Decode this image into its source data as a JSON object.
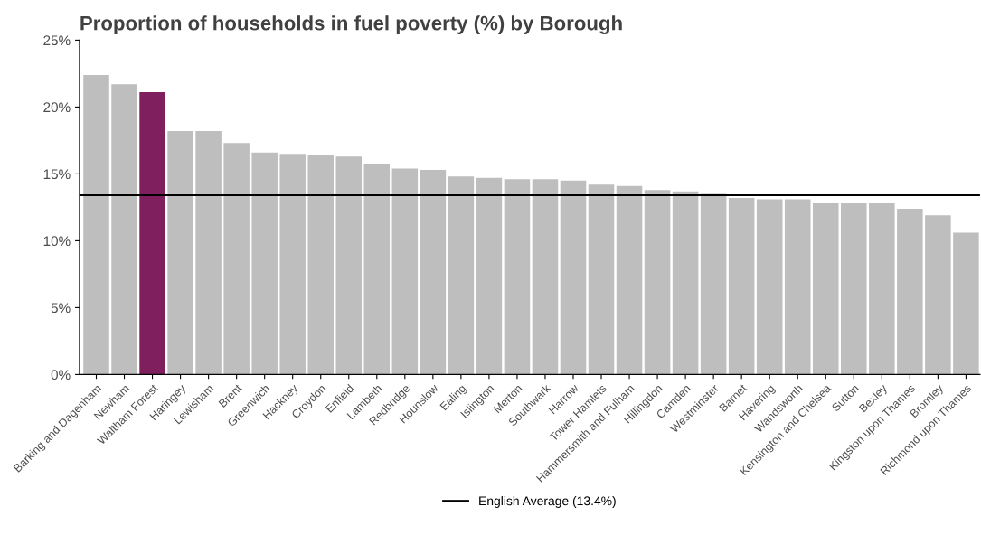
{
  "chart_data": {
    "type": "bar",
    "title": "Proportion of households in fuel poverty (%) by Borough",
    "categories": [
      "Barking and Dagenham",
      "Newham",
      "Waltham Forest",
      "Haringey",
      "Lewisham",
      "Brent",
      "Greenwich",
      "Hackney",
      "Croydon",
      "Enfield",
      "Lambeth",
      "Redbridge",
      "Hounslow",
      "Ealing",
      "Islington",
      "Merton",
      "Southwark",
      "Harrow",
      "Tower Hamlets",
      "Hammersmith and Fulham",
      "Hillingdon",
      "Camden",
      "Westminster",
      "Barnet",
      "Havering",
      "Wandsworth",
      "Kensington and Chelsea",
      "Sutton",
      "Bexley",
      "Kingston upon Thames",
      "Bromley",
      "Richmond upon Thames"
    ],
    "values": [
      22.4,
      21.7,
      21.1,
      18.2,
      18.2,
      17.3,
      16.6,
      16.5,
      16.4,
      16.3,
      15.7,
      15.4,
      15.3,
      14.8,
      14.7,
      14.6,
      14.6,
      14.5,
      14.2,
      14.1,
      13.8,
      13.7,
      13.5,
      13.2,
      13.1,
      13.1,
      12.8,
      12.8,
      12.8,
      12.4,
      11.9,
      10.6
    ],
    "colors": [
      "#bebebe",
      "#bebebe",
      "#7f1f5e",
      "#bebebe",
      "#bebebe",
      "#bebebe",
      "#bebebe",
      "#bebebe",
      "#bebebe",
      "#bebebe",
      "#bebebe",
      "#bebebe",
      "#bebebe",
      "#bebebe",
      "#bebebe",
      "#bebebe",
      "#bebebe",
      "#bebebe",
      "#bebebe",
      "#bebebe",
      "#bebebe",
      "#bebebe",
      "#bebebe",
      "#bebebe",
      "#bebebe",
      "#bebebe",
      "#bebebe",
      "#bebebe",
      "#bebebe",
      "#bebebe",
      "#bebebe",
      "#bebebe"
    ],
    "ylim": [
      0,
      25
    ],
    "yticks": [
      {
        "value": 0,
        "label": "0%"
      },
      {
        "value": 5,
        "label": "5%"
      },
      {
        "value": 10,
        "label": "10%"
      },
      {
        "value": 15,
        "label": "15%"
      },
      {
        "value": 20,
        "label": "20%"
      },
      {
        "value": 25,
        "label": "25%"
      }
    ],
    "ref_lines": [
      {
        "axis": "y",
        "value": 13.4,
        "label": "English Average (13.4%)",
        "color": "#000000",
        "line_style": "solid"
      }
    ],
    "grid": false,
    "legend": "bottom"
  }
}
